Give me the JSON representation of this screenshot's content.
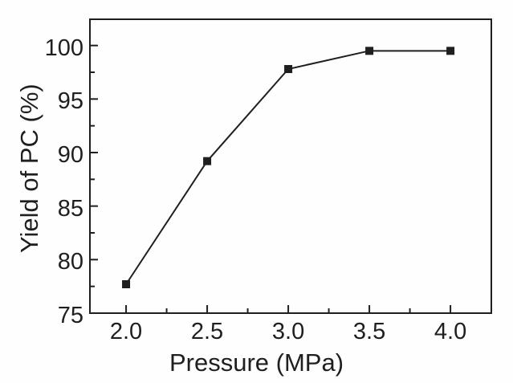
{
  "figure": {
    "background": "#fefefe",
    "line_color": "#1f1f1f",
    "frame_color": "#1f1f1f",
    "marker_color": "#1f1f1f"
  },
  "chart_data": {
    "type": "line",
    "title": "",
    "xlabel": "Pressure (MPa)",
    "ylabel": "Yield of PC (%)",
    "series": [
      {
        "name": "Yield of PC",
        "x": [
          2.0,
          2.5,
          3.0,
          3.5,
          4.0
        ],
        "y": [
          77.7,
          89.2,
          97.8,
          99.5,
          99.5
        ],
        "marker": "square",
        "marker_size": 10,
        "line_width": 2
      }
    ],
    "xlim": [
      1.777,
      4.252
    ],
    "ylim": [
      75,
      102.45
    ],
    "x_major_ticks": [
      2.0,
      2.5,
      3.0,
      3.5,
      4.0
    ],
    "x_tick_labels": [
      "2.0",
      "2.5",
      "3.0",
      "3.5",
      "4.0"
    ],
    "x_minor_ticks": [
      2.25,
      2.75,
      3.25,
      3.75
    ],
    "y_major_ticks": [
      75,
      80,
      85,
      90,
      95,
      100
    ],
    "y_tick_labels": [
      "75",
      "80",
      "85",
      "90",
      "95",
      "100"
    ],
    "y_minor_ticks": [
      77.5,
      82.5,
      87.5,
      92.5,
      97.5
    ],
    "tick_direction": "in",
    "grid": false,
    "legend": null
  }
}
